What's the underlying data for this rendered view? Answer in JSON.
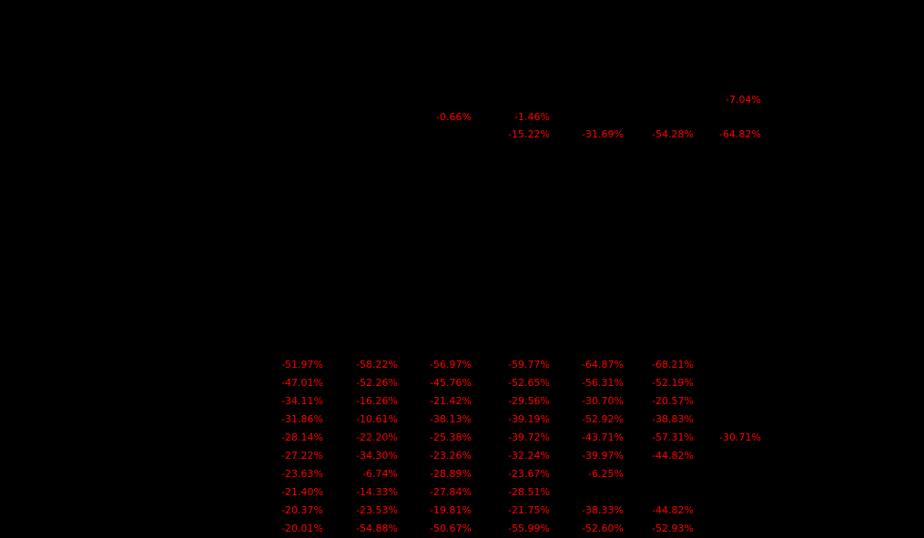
{
  "colors": {
    "background": "#000000",
    "negative_value": "#ff0000"
  },
  "chart_data": [
    {
      "type": "table",
      "name": "upper value group",
      "units": "percent",
      "visible_values_only": true,
      "rows": [
        [
          null,
          null,
          null,
          null,
          null,
          null,
          "-7.04%"
        ],
        [
          null,
          null,
          "-0.66%",
          "-1.46%",
          null,
          null,
          null
        ],
        [
          null,
          null,
          null,
          "-15.22%",
          "-31.69%",
          "-54.28%",
          "-64.82%"
        ]
      ]
    },
    {
      "type": "table",
      "name": "lower value table",
      "units": "percent",
      "visible_values_only": true,
      "rows": [
        [
          "-51.97%",
          "-58.22%",
          "-56.97%",
          "-59.77%",
          "-64.87%",
          "-68.21%",
          null
        ],
        [
          "-47.01%",
          "-52.26%",
          "-45.76%",
          "-52.65%",
          "-56.31%",
          "-52.19%",
          null
        ],
        [
          "-34.11%",
          "-16.26%",
          "-21.42%",
          "-29.56%",
          "-30.70%",
          "-20.57%",
          null
        ],
        [
          "-31.86%",
          "-10.61%",
          "-38.13%",
          "-39.19%",
          "-52.92%",
          "-38.83%",
          null
        ],
        [
          "-28.14%",
          "-22.20%",
          "-25.38%",
          "-39.72%",
          "-43.71%",
          "-57.31%",
          "-30.71%"
        ],
        [
          "-27.22%",
          "-34.30%",
          "-23.26%",
          "-32.24%",
          "-39.97%",
          "-44.82%",
          null
        ],
        [
          "-23.63%",
          "-6.74%",
          "-28.89%",
          "-23.67%",
          "-6.25%",
          null,
          null
        ],
        [
          "-21.40%",
          "-14.33%",
          "-27.84%",
          "-28.51%",
          null,
          null,
          null
        ],
        [
          "-20.37%",
          "-23.53%",
          "-19.81%",
          "-21.75%",
          "-38.33%",
          "-44.82%",
          null
        ],
        [
          "-20.01%",
          "-54.88%",
          "-50.67%",
          "-55.99%",
          "-52.60%",
          "-52.93%",
          null
        ]
      ]
    }
  ]
}
